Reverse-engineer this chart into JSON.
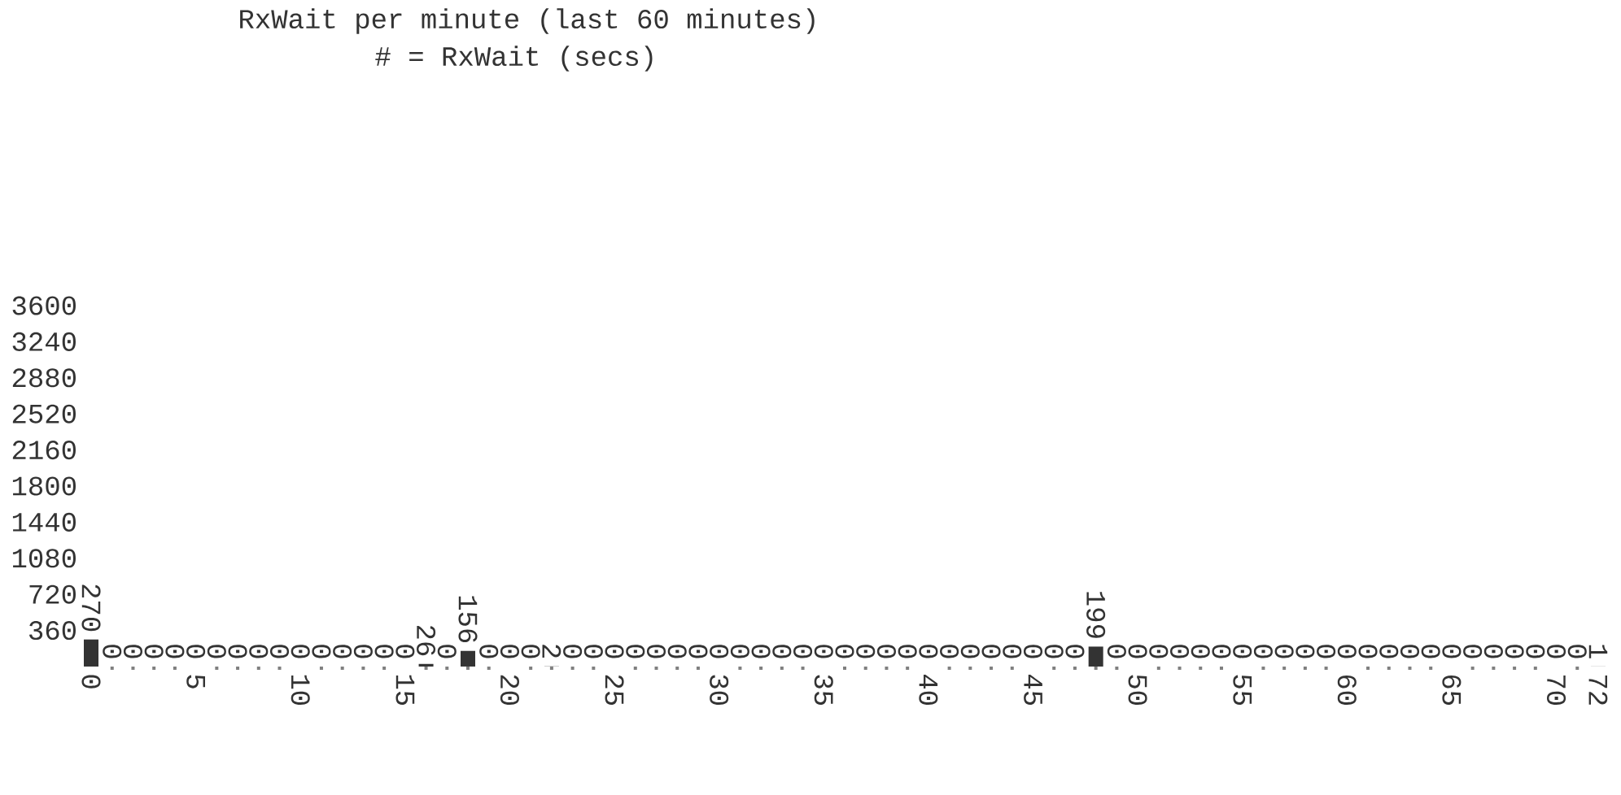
{
  "chart_data": {
    "type": "bar",
    "title": "RxWait per minute (last 60 minutes)",
    "subtitle": "# = RxWait (secs)",
    "x": [
      0,
      1,
      2,
      3,
      4,
      5,
      6,
      7,
      8,
      9,
      10,
      11,
      12,
      13,
      14,
      15,
      16,
      17,
      18,
      19,
      20,
      21,
      22,
      23,
      24,
      25,
      26,
      27,
      28,
      29,
      30,
      31,
      32,
      33,
      34,
      35,
      36,
      37,
      38,
      39,
      40,
      41,
      42,
      43,
      44,
      45,
      46,
      47,
      48,
      49,
      50,
      51,
      52,
      53,
      54,
      55,
      56,
      57,
      58,
      59,
      60,
      61,
      62,
      63,
      64,
      65,
      66,
      67,
      68,
      69,
      70,
      71,
      72
    ],
    "values": [
      270,
      0,
      0,
      0,
      0,
      0,
      0,
      0,
      0,
      0,
      0,
      0,
      0,
      0,
      0,
      0,
      26,
      0,
      156,
      0,
      0,
      0,
      2,
      0,
      0,
      0,
      0,
      0,
      0,
      0,
      0,
      0,
      0,
      0,
      0,
      0,
      0,
      0,
      0,
      0,
      0,
      0,
      0,
      0,
      0,
      0,
      0,
      0,
      199,
      0,
      0,
      0,
      0,
      0,
      0,
      0,
      0,
      0,
      0,
      0,
      0,
      0,
      0,
      0,
      0,
      0,
      0,
      0,
      0,
      0,
      0,
      0,
      1
    ],
    "color": "#333333",
    "value_labels": [
      "270",
      "0",
      "0",
      "0",
      "0",
      "0",
      "0",
      "0",
      "0",
      "0",
      "0",
      "0",
      "0",
      "0",
      "0",
      "0",
      "26",
      "0",
      "156",
      "0",
      "0",
      "0",
      "2",
      "0",
      "0",
      "0",
      "0",
      "0",
      "0",
      "0",
      "0",
      "0",
      "0",
      "0",
      "0",
      "0",
      "0",
      "0",
      "0",
      "0",
      "0",
      "0",
      "0",
      "0",
      "0",
      "0",
      "0",
      "0",
      "199",
      "0",
      "0",
      "0",
      "0",
      "0",
      "0",
      "0",
      "0",
      "0",
      "0",
      "0",
      "0",
      "0",
      "0",
      "0",
      "0",
      "0",
      "0",
      "0",
      "0",
      "0",
      "0",
      "0",
      "1"
    ],
    "xlim": [
      0,
      72
    ],
    "xticks": [
      0,
      {
        "value": 1,
        "label": null
      },
      {
        "value": 2,
        "label": null
      },
      {
        "value": 3,
        "label": null
      },
      {
        "value": 4,
        "label": null
      },
      5,
      {
        "value": 6,
        "label": null
      },
      {
        "value": 7,
        "label": null
      },
      {
        "value": 8,
        "label": null
      },
      {
        "value": 9,
        "label": null
      },
      10,
      {
        "value": 11,
        "label": null
      },
      {
        "value": 12,
        "label": null
      },
      {
        "value": 13,
        "label": null
      },
      {
        "value": 14,
        "label": null
      },
      15,
      {
        "value": 16,
        "label": null
      },
      {
        "value": 17,
        "label": null
      },
      {
        "value": 18,
        "label": null
      },
      {
        "value": 19,
        "label": null
      },
      20,
      {
        "value": 21,
        "label": null
      },
      {
        "value": 22,
        "label": null
      },
      {
        "value": 23,
        "label": null
      },
      {
        "value": 24,
        "label": null
      },
      25,
      {
        "value": 26,
        "label": null
      },
      {
        "value": 27,
        "label": null
      },
      {
        "value": 28,
        "label": null
      },
      {
        "value": 29,
        "label": null
      },
      30,
      {
        "value": 31,
        "label": null
      },
      {
        "value": 32,
        "label": null
      },
      {
        "value": 33,
        "label": null
      },
      {
        "value": 34,
        "label": null
      },
      35,
      {
        "value": 36,
        "label": null
      },
      {
        "value": 37,
        "label": null
      },
      {
        "value": 38,
        "label": null
      },
      {
        "value": 39,
        "label": null
      },
      40,
      {
        "value": 41,
        "label": null
      },
      {
        "value": 42,
        "label": null
      },
      {
        "value": 43,
        "label": null
      },
      {
        "value": 44,
        "label": null
      },
      45,
      {
        "value": 46,
        "label": null
      },
      {
        "value": 47,
        "label": null
      },
      {
        "value": 48,
        "label": null
      },
      {
        "value": 49,
        "label": null
      },
      50,
      {
        "value": 51,
        "label": null
      },
      {
        "value": 52,
        "label": null
      },
      {
        "value": 53,
        "label": null
      },
      {
        "value": 54,
        "label": null
      },
      55,
      {
        "value": 56,
        "label": null
      },
      {
        "value": 57,
        "label": null
      },
      {
        "value": 58,
        "label": null
      },
      {
        "value": 59,
        "label": null
      },
      60,
      {
        "value": 61,
        "label": null
      },
      {
        "value": 62,
        "label": null
      },
      {
        "value": 63,
        "label": null
      },
      {
        "value": 64,
        "label": null
      },
      65,
      {
        "value": 66,
        "label": null
      },
      {
        "value": 67,
        "label": null
      },
      {
        "value": 68,
        "label": null
      },
      {
        "value": 69,
        "label": null
      },
      70,
      {
        "value": 71,
        "label": null
      },
      72
    ],
    "ylim": [
      0,
      3600
    ],
    "yticks": [
      360,
      720,
      1080,
      1440,
      1800,
      2160,
      2520,
      2880,
      3240,
      3600
    ]
  }
}
